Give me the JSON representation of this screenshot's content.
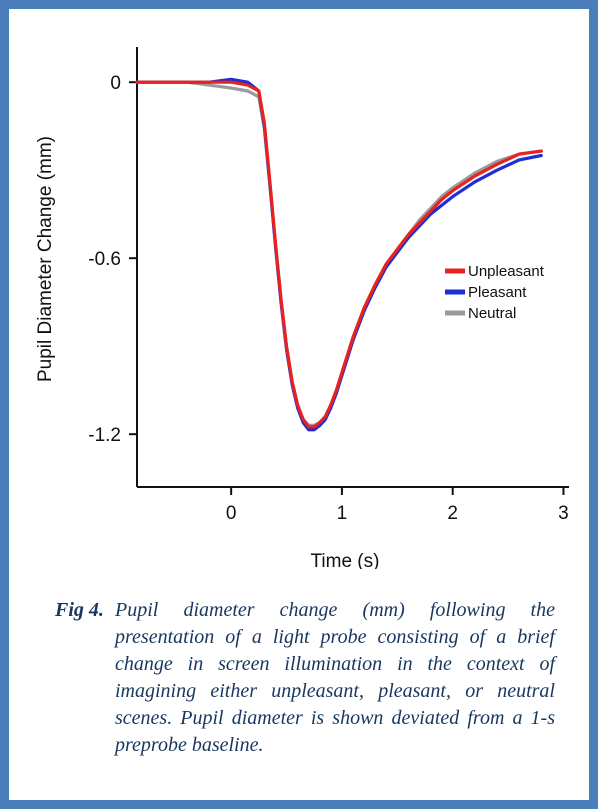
{
  "chart_data": {
    "type": "line",
    "title": "",
    "xlabel": "Time (s)",
    "ylabel": "Pupil Diameter Change (mm)",
    "xlim": [
      -0.85,
      3.05
    ],
    "ylim": [
      -1.38,
      0.12
    ],
    "x_ticks": [
      0,
      1,
      2,
      3
    ],
    "x_tick_labels": [
      "0",
      "1",
      "2",
      "3"
    ],
    "y_ticks": [
      0,
      -0.6,
      -1.2
    ],
    "y_tick_labels": [
      "0",
      "-0.6",
      "-1.2"
    ],
    "grid": false,
    "legend_position": "right",
    "colors": {
      "Unpleasant": "#e8231f",
      "Pleasant": "#1b2ed8",
      "Neutral": "#9a9a9a"
    },
    "x": [
      -0.85,
      -0.6,
      -0.4,
      -0.2,
      0.0,
      0.15,
      0.25,
      0.3,
      0.35,
      0.4,
      0.45,
      0.5,
      0.55,
      0.6,
      0.65,
      0.7,
      0.75,
      0.8,
      0.85,
      0.9,
      0.95,
      1.0,
      1.05,
      1.1,
      1.2,
      1.3,
      1.4,
      1.5,
      1.6,
      1.7,
      1.8,
      1.9,
      2.0,
      2.2,
      2.4,
      2.6,
      2.8
    ],
    "series": [
      {
        "name": "Unpleasant",
        "values": [
          0.0,
          0.0,
          0.0,
          0.0,
          0.0,
          -0.01,
          -0.03,
          -0.14,
          -0.34,
          -0.55,
          -0.74,
          -0.9,
          -1.02,
          -1.1,
          -1.15,
          -1.175,
          -1.175,
          -1.16,
          -1.14,
          -1.1,
          -1.05,
          -0.99,
          -0.93,
          -0.87,
          -0.77,
          -0.69,
          -0.62,
          -0.57,
          -0.52,
          -0.48,
          -0.44,
          -0.4,
          -0.37,
          -0.32,
          -0.28,
          -0.245,
          -0.235
        ]
      },
      {
        "name": "Pleasant",
        "values": [
          0.0,
          0.0,
          0.0,
          0.0,
          0.01,
          0.0,
          -0.03,
          -0.15,
          -0.35,
          -0.56,
          -0.75,
          -0.91,
          -1.03,
          -1.11,
          -1.16,
          -1.185,
          -1.185,
          -1.17,
          -1.15,
          -1.11,
          -1.06,
          -1.0,
          -0.94,
          -0.88,
          -0.78,
          -0.7,
          -0.63,
          -0.58,
          -0.53,
          -0.49,
          -0.45,
          -0.42,
          -0.39,
          -0.34,
          -0.3,
          -0.265,
          -0.25
        ]
      },
      {
        "name": "Neutral",
        "values": [
          0.0,
          0.0,
          0.0,
          -0.01,
          -0.02,
          -0.03,
          -0.05,
          -0.16,
          -0.35,
          -0.55,
          -0.74,
          -0.9,
          -1.02,
          -1.1,
          -1.15,
          -1.17,
          -1.17,
          -1.16,
          -1.14,
          -1.1,
          -1.05,
          -0.99,
          -0.93,
          -0.87,
          -0.77,
          -0.69,
          -0.62,
          -0.57,
          -0.52,
          -0.47,
          -0.43,
          -0.39,
          -0.36,
          -0.31,
          -0.27,
          -0.245,
          -0.235
        ]
      }
    ],
    "legend": [
      "Unpleasant",
      "Pleasant",
      "Neutral"
    ]
  },
  "caption": {
    "label": "Fig 4.",
    "text": "Pupil diameter change (mm) following the presentation of a light probe consisting of a brief change in screen illumination in the context of imagining either unpleasant, pleasant, or neutral scenes. Pupil diameter is shown deviated from a 1-s preprobe baseline."
  }
}
